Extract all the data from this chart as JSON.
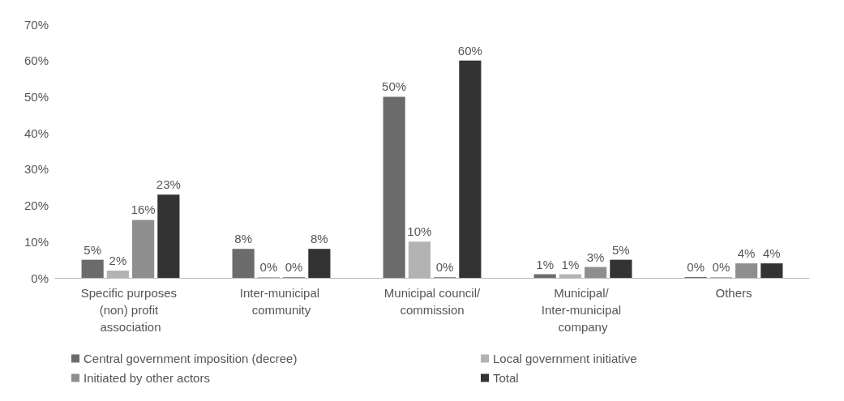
{
  "chart_data": {
    "type": "bar",
    "categories": [
      "Specific purposes (non) profit association",
      "Inter-municipal community",
      "Municipal council/commission",
      "Municipal/ Inter-municipal company",
      "Others"
    ],
    "series": [
      {
        "name": "Central government imposition (decree)",
        "color": "#6b6b6b",
        "values": [
          5,
          8,
          50,
          1,
          0
        ],
        "value_labels": [
          "5%",
          "8%",
          "50%",
          "1%",
          "0%"
        ]
      },
      {
        "name": "Local government initiative",
        "color": "#b3b3b3",
        "values": [
          2,
          0,
          10,
          1,
          0
        ],
        "value_labels": [
          "2%",
          "0%",
          "10%",
          "1%",
          "0%"
        ]
      },
      {
        "name": "Initiated by other actors",
        "color": "#8e8e8e",
        "values": [
          16,
          0,
          0,
          3,
          4
        ],
        "value_labels": [
          "16%",
          "0%",
          "0%",
          "3%",
          "4%"
        ]
      },
      {
        "name": "Total",
        "color": "#333333",
        "values": [
          23,
          8,
          60,
          5,
          4
        ],
        "value_labels": [
          "23%",
          "8%",
          "60%",
          "5%",
          "4%"
        ]
      }
    ],
    "ylim": [
      0,
      70
    ],
    "yticks": [
      {
        "value": 0,
        "label": "0%"
      },
      {
        "value": 10,
        "label": "10%"
      },
      {
        "value": 20,
        "label": "20%"
      },
      {
        "value": 30,
        "label": "30%"
      },
      {
        "value": 40,
        "label": "40%"
      },
      {
        "value": 50,
        "label": "50%"
      },
      {
        "value": 60,
        "label": "60%"
      },
      {
        "value": 70,
        "label": "70%"
      }
    ],
    "grid": false,
    "legend": "bottom"
  }
}
